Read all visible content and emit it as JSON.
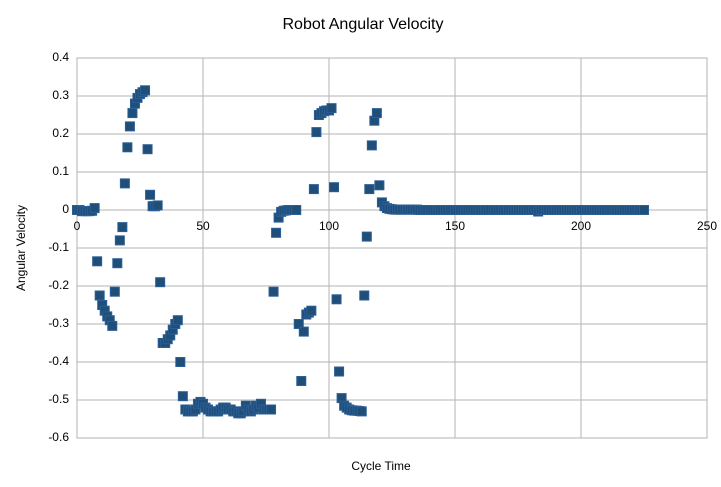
{
  "chart_data": {
    "type": "scatter",
    "title": "Robot Angular Velocity",
    "x_label": "Cycle Time",
    "y_label": "Angular Velocity",
    "color": "#1f4e79",
    "grid": true,
    "xlim": [
      0,
      250
    ],
    "ylim": [
      -0.6,
      0.4
    ],
    "xticks": [
      0,
      50,
      100,
      150,
      200,
      250
    ],
    "yticks": [
      0.4,
      0.3,
      0.2,
      0.1,
      0,
      -0.1,
      -0.2,
      -0.3,
      -0.4,
      -0.5,
      -0.6
    ],
    "x": [
      0,
      1,
      2,
      3,
      4,
      5,
      6,
      7,
      8,
      9,
      10,
      11,
      12,
      13,
      14,
      15,
      16,
      17,
      18,
      19,
      20,
      21,
      22,
      23,
      24,
      25,
      26,
      27,
      28,
      29,
      30,
      31,
      32,
      33,
      34,
      35,
      36,
      37,
      38,
      39,
      40,
      41,
      42,
      43,
      44,
      45,
      46,
      47,
      48,
      49,
      50,
      51,
      52,
      53,
      54,
      55,
      56,
      57,
      58,
      59,
      60,
      61,
      62,
      63,
      64,
      65,
      66,
      67,
      68,
      69,
      70,
      71,
      72,
      73,
      74,
      75,
      76,
      77,
      78,
      79,
      80,
      81,
      82,
      83,
      84,
      85,
      86,
      87,
      88,
      89,
      90,
      91,
      92,
      93,
      94,
      95,
      96,
      97,
      98,
      99,
      100,
      101,
      102,
      103,
      104,
      105,
      106,
      107,
      108,
      109,
      110,
      111,
      112,
      113,
      114,
      115,
      116,
      117,
      118,
      119,
      120,
      121,
      122,
      123,
      124,
      125,
      126,
      127,
      128,
      129,
      130,
      131,
      132,
      133,
      134,
      135,
      136,
      137,
      138,
      139,
      140,
      141,
      142,
      143,
      144,
      145,
      146,
      147,
      148,
      149,
      150,
      151,
      152,
      153,
      154,
      155,
      156,
      157,
      158,
      159,
      160,
      161,
      162,
      163,
      164,
      165,
      166,
      167,
      168,
      169,
      170,
      171,
      172,
      173,
      174,
      175,
      176,
      177,
      178,
      179,
      180,
      181,
      182,
      183,
      184,
      185,
      186,
      187,
      188,
      189,
      190,
      191,
      192,
      193,
      194,
      195,
      196,
      197,
      198,
      199,
      200,
      201,
      202,
      203,
      204,
      205,
      206,
      207,
      208,
      209,
      210,
      211,
      212,
      213,
      214,
      215,
      216,
      217,
      218,
      219,
      220,
      221,
      222,
      223,
      224,
      225
    ],
    "values": [
      0,
      0,
      -0.003,
      -0.003,
      -0.003,
      -0.003,
      -0.002,
      0.005,
      -0.135,
      -0.225,
      -0.25,
      -0.265,
      -0.28,
      -0.29,
      -0.305,
      -0.215,
      -0.14,
      -0.08,
      -0.045,
      0.07,
      0.165,
      0.22,
      0.255,
      0.28,
      0.295,
      0.305,
      0.31,
      0.315,
      0.16,
      0.04,
      0.01,
      0.01,
      0.012,
      -0.19,
      -0.35,
      -0.35,
      -0.34,
      -0.33,
      -0.315,
      -0.3,
      -0.29,
      -0.4,
      -0.49,
      -0.525,
      -0.53,
      -0.53,
      -0.53,
      -0.525,
      -0.51,
      -0.505,
      -0.51,
      -0.52,
      -0.525,
      -0.53,
      -0.53,
      -0.53,
      -0.53,
      -0.525,
      -0.52,
      -0.52,
      -0.525,
      -0.525,
      -0.53,
      -0.53,
      -0.535,
      -0.535,
      -0.53,
      -0.515,
      -0.525,
      -0.53,
      -0.525,
      -0.515,
      -0.52,
      -0.51,
      -0.525,
      -0.525,
      -0.525,
      -0.525,
      -0.215,
      -0.06,
      -0.02,
      -0.005,
      -0.002,
      -0.001,
      0,
      0,
      0,
      0,
      -0.3,
      -0.45,
      -0.32,
      -0.275,
      -0.27,
      -0.265,
      0.055,
      0.205,
      0.25,
      0.255,
      0.26,
      0.262,
      0.262,
      0.268,
      0.06,
      -0.235,
      -0.425,
      -0.495,
      -0.515,
      -0.52,
      -0.525,
      -0.527,
      -0.528,
      -0.528,
      -0.529,
      -0.53,
      -0.225,
      -0.07,
      0.055,
      0.17,
      0.235,
      0.255,
      0.065,
      0.02,
      0.01,
      0.005,
      0.003,
      0.002,
      0.001,
      0.001,
      0.001,
      0.001,
      0.001,
      0.001,
      0.001,
      0.001,
      0.001,
      0.001,
      0,
      0,
      0,
      0,
      0,
      0,
      0,
      0,
      0,
      0,
      0,
      0,
      0,
      0,
      0,
      0,
      0,
      0,
      0,
      0,
      0,
      0,
      0,
      0,
      0,
      0,
      0,
      0,
      0,
      0,
      0,
      0,
      0,
      0,
      0,
      0,
      0,
      0,
      0,
      0,
      0,
      0,
      0,
      0,
      0,
      0,
      0,
      -0.004,
      0,
      0,
      0,
      0,
      0,
      0,
      0,
      0,
      0,
      0,
      0,
      0,
      0,
      0,
      0,
      0,
      0,
      0,
      0,
      0,
      0,
      0,
      0,
      0,
      0,
      0,
      0,
      0,
      0,
      0,
      0,
      0,
      0,
      0,
      0,
      0,
      0,
      0,
      0,
      0,
      0,
      0
    ]
  }
}
